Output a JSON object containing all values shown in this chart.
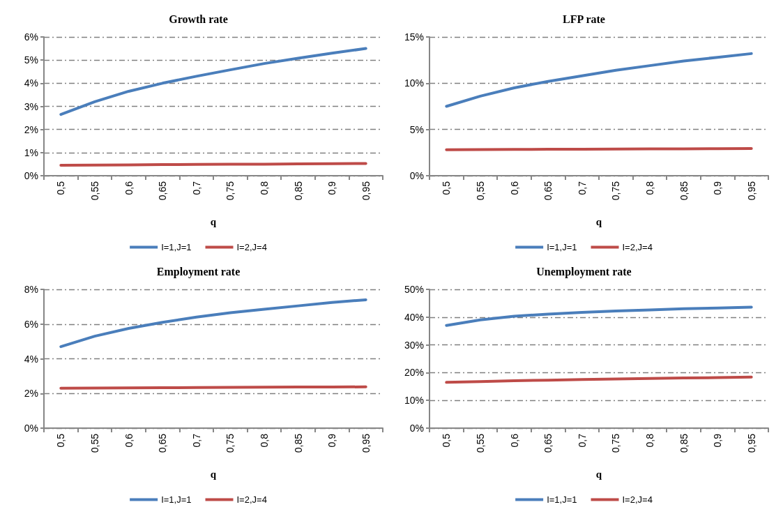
{
  "chart_data": [
    {
      "type": "line",
      "title": "Growth rate",
      "xlabel": "q",
      "categories": [
        "0,5",
        "0,55",
        "0,6",
        "0,65",
        "0,7",
        "0,75",
        "0,8",
        "0,85",
        "0,9",
        "0,95"
      ],
      "ylim": [
        0,
        6
      ],
      "yticks": [
        {
          "value": 0,
          "label": "0%"
        },
        {
          "value": 1,
          "label": "1%"
        },
        {
          "value": 2,
          "label": "2%"
        },
        {
          "value": 3,
          "label": "3%"
        },
        {
          "value": 4,
          "label": "4%"
        },
        {
          "value": 5,
          "label": "5%"
        },
        {
          "value": 6,
          "label": "6%"
        }
      ],
      "grid": "y",
      "legend": "bottom",
      "marker": "none",
      "line_style": "solid",
      "series": [
        {
          "name": "I=1,J=1",
          "color": "#4a7ebb",
          "values": [
            2.65,
            3.2,
            3.65,
            4.0,
            4.3,
            4.58,
            4.85,
            5.08,
            5.3,
            5.5
          ]
        },
        {
          "name": "I=2,J=4",
          "color": "#be4b48",
          "values": [
            0.45,
            0.46,
            0.47,
            0.48,
            0.49,
            0.5,
            0.5,
            0.51,
            0.52,
            0.53
          ]
        }
      ]
    },
    {
      "type": "line",
      "title": "LFP rate",
      "xlabel": "q",
      "categories": [
        "0,5",
        "0,55",
        "0,6",
        "0,65",
        "0,7",
        "0,75",
        "0,8",
        "0,85",
        "0,9",
        "0,95"
      ],
      "ylim": [
        0,
        15
      ],
      "yticks": [
        {
          "value": 0,
          "label": "0%"
        },
        {
          "value": 5,
          "label": "5%"
        },
        {
          "value": 10,
          "label": "10%"
        },
        {
          "value": 15,
          "label": "15%"
        }
      ],
      "grid": "y",
      "legend": "bottom",
      "marker": "none",
      "line_style": "solid",
      "series": [
        {
          "name": "I=1,J=1",
          "color": "#4a7ebb",
          "values": [
            7.5,
            8.6,
            9.5,
            10.2,
            10.8,
            11.4,
            11.9,
            12.4,
            12.8,
            13.2
          ]
        },
        {
          "name": "I=2,J=4",
          "color": "#be4b48",
          "values": [
            2.8,
            2.82,
            2.84,
            2.86,
            2.87,
            2.88,
            2.9,
            2.91,
            2.92,
            2.94
          ]
        }
      ]
    },
    {
      "type": "line",
      "title": "Employment rate",
      "xlabel": "q",
      "categories": [
        "0,5",
        "0,55",
        "0,6",
        "0,65",
        "0,7",
        "0,75",
        "0,8",
        "0,85",
        "0,9",
        "0,95"
      ],
      "ylim": [
        0,
        8
      ],
      "yticks": [
        {
          "value": 0,
          "label": "0%"
        },
        {
          "value": 2,
          "label": "2%"
        },
        {
          "value": 4,
          "label": "4%"
        },
        {
          "value": 6,
          "label": "6%"
        },
        {
          "value": 8,
          "label": "8%"
        }
      ],
      "grid": "y",
      "legend": "bottom",
      "marker": "none",
      "line_style": "solid",
      "series": [
        {
          "name": "I=1,J=1",
          "color": "#4a7ebb",
          "values": [
            4.7,
            5.3,
            5.75,
            6.1,
            6.4,
            6.65,
            6.85,
            7.05,
            7.25,
            7.4
          ]
        },
        {
          "name": "I=2,J=4",
          "color": "#be4b48",
          "values": [
            2.3,
            2.31,
            2.32,
            2.33,
            2.34,
            2.35,
            2.36,
            2.37,
            2.37,
            2.38
          ]
        }
      ]
    },
    {
      "type": "line",
      "title": "Unemployment rate",
      "xlabel": "q",
      "categories": [
        "0,5",
        "0,55",
        "0,6",
        "0,65",
        "0,7",
        "0,75",
        "0,8",
        "0,85",
        "0,9",
        "0,95"
      ],
      "ylim": [
        0,
        50
      ],
      "yticks": [
        {
          "value": 0,
          "label": "0%"
        },
        {
          "value": 10,
          "label": "10%"
        },
        {
          "value": 20,
          "label": "20%"
        },
        {
          "value": 30,
          "label": "30%"
        },
        {
          "value": 40,
          "label": "40%"
        },
        {
          "value": 50,
          "label": "50%"
        }
      ],
      "grid": "y",
      "legend": "bottom",
      "marker": "none",
      "line_style": "solid",
      "series": [
        {
          "name": "I=1,J=1",
          "color": "#4a7ebb",
          "values": [
            37,
            39,
            40.3,
            41.1,
            41.7,
            42.2,
            42.6,
            43,
            43.3,
            43.6
          ]
        },
        {
          "name": "I=2,J=4",
          "color": "#be4b48",
          "values": [
            16.5,
            16.8,
            17.1,
            17.3,
            17.5,
            17.7,
            17.9,
            18.1,
            18.2,
            18.4
          ]
        }
      ]
    }
  ]
}
